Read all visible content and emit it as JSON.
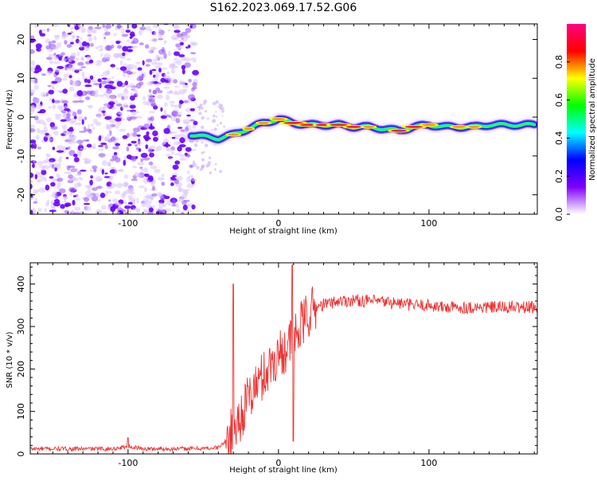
{
  "title": "S162.2023.069.17.52.G06",
  "chart_data": [
    {
      "type": "heatmap",
      "title": "S162.2023.069.17.52.G06",
      "xlabel": "Height of straight line (km)",
      "ylabel": "Frequency (Hz)",
      "xlim": [
        -165,
        172
      ],
      "ylim": [
        -25,
        24
      ],
      "xticks": [
        -100,
        0,
        100
      ],
      "yticks": [
        -20,
        -10,
        0,
        10,
        20
      ],
      "colorbar": {
        "label": "Normalized spectral amplitude",
        "range": [
          0,
          1
        ],
        "ticks": [
          "0.0",
          "0.2",
          "0.4",
          "0.6",
          "0.8"
        ],
        "colors": [
          "#ffffff",
          "#8000ff",
          "#0000ff",
          "#00ffff",
          "#00ff00",
          "#ffff00",
          "#ff0000",
          "#ff0080"
        ]
      },
      "ridge": {
        "x": [
          -58,
          -50,
          -40,
          -30,
          -20,
          -10,
          0,
          10,
          20,
          30,
          40,
          50,
          60,
          70,
          80,
          90,
          100,
          110,
          120,
          130,
          140,
          150,
          160,
          170
        ],
        "freq": [
          -4.5,
          -5,
          -5.5,
          -4.5,
          -3,
          -1.5,
          -0.5,
          -1.5,
          -2,
          -2,
          -2,
          -2.5,
          -2.5,
          -3,
          -3.5,
          -2.5,
          -2,
          -2.5,
          -2.5,
          -2.5,
          -2,
          -2,
          -2,
          -2
        ],
        "amplitude": [
          0.4,
          0.55,
          0.55,
          0.7,
          0.65,
          0.7,
          0.75,
          0.9,
          0.85,
          0.8,
          0.85,
          0.8,
          0.7,
          0.6,
          0.8,
          0.85,
          0.75,
          0.6,
          0.75,
          0.7,
          0.5,
          0.55,
          0.5,
          0.45
        ]
      },
      "noise_region": [
        -165,
        -55
      ]
    },
    {
      "type": "line",
      "xlabel": "Height of straight line (km)",
      "ylabel": "SNR (10 * v/v)",
      "xlim": [
        -165,
        172
      ],
      "ylim": [
        0,
        450
      ],
      "xticks": [
        -100,
        0,
        100
      ],
      "yticks": [
        0,
        100,
        200,
        300,
        400
      ],
      "series": [
        {
          "color": "#ee3333",
          "x": [
            -165,
            -150,
            -130,
            -110,
            -100,
            -90,
            -70,
            -50,
            -40,
            -35,
            -30,
            -25,
            -20,
            -15,
            -10,
            -5,
            0,
            5,
            10,
            15,
            20,
            25,
            30,
            40,
            50,
            60,
            70,
            80,
            90,
            100,
            110,
            120,
            130,
            140,
            150,
            160,
            172
          ],
          "y": [
            12,
            12,
            12,
            12,
            18,
            12,
            12,
            13,
            15,
            30,
            55,
            90,
            130,
            160,
            185,
            210,
            235,
            250,
            270,
            300,
            330,
            345,
            352,
            360,
            362,
            360,
            358,
            355,
            350,
            350,
            345,
            345,
            345,
            345,
            345,
            345,
            345
          ]
        }
      ],
      "spikes": [
        {
          "x": -30,
          "y": 400
        },
        {
          "x": 9,
          "y": 445
        },
        {
          "x": 9.8,
          "y": 30
        },
        {
          "x": -100,
          "y": 38
        }
      ]
    }
  ]
}
